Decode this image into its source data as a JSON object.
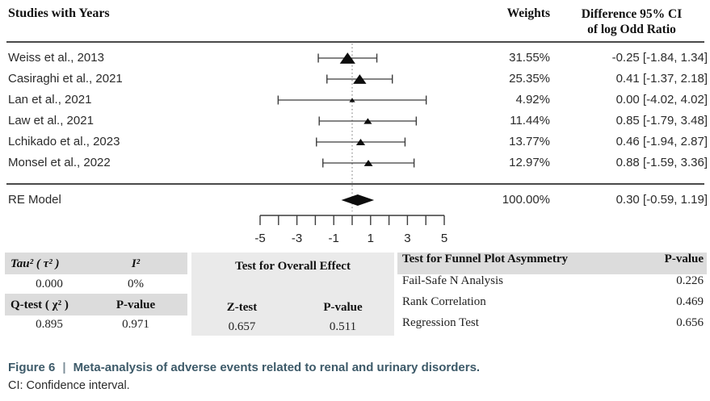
{
  "table_header": {
    "studies": "Studies with Years",
    "weights": "Weights",
    "difference_line1": "Difference 95% CI",
    "difference_line2": "of log Odd Ratio"
  },
  "chart_data": {
    "type": "forest",
    "effect_measure": "log Odd Ratio",
    "x_axis": {
      "min": -5,
      "max": 5,
      "tick_interval": 1,
      "tick_labels": [
        -5,
        -3,
        -1,
        1,
        3,
        5
      ],
      "reference_line": 0
    },
    "studies": [
      {
        "label": "Weiss et al., 2013",
        "weight_pct": 31.55,
        "weight_text": "31.55%",
        "estimate": -0.25,
        "ci_lower": -1.84,
        "ci_upper": 1.34,
        "ci_text": "-0.25 [-1.84, 1.34]"
      },
      {
        "label": "Casiraghi et al., 2021",
        "weight_pct": 25.35,
        "weight_text": "25.35%",
        "estimate": 0.41,
        "ci_lower": -1.37,
        "ci_upper": 2.18,
        "ci_text": "0.41 [-1.37, 2.18]"
      },
      {
        "label": "Lan et al., 2021",
        "weight_pct": 4.92,
        "weight_text": "4.92%",
        "estimate": 0.0,
        "ci_lower": -4.02,
        "ci_upper": 4.02,
        "ci_text": "0.00 [-4.02, 4.02]"
      },
      {
        "label": "Law et al., 2021",
        "weight_pct": 11.44,
        "weight_text": "11.44%",
        "estimate": 0.85,
        "ci_lower": -1.79,
        "ci_upper": 3.48,
        "ci_text": "0.85 [-1.79, 3.48]"
      },
      {
        "label": "Lchikado et al., 2023",
        "weight_pct": 13.77,
        "weight_text": "13.77%",
        "estimate": 0.46,
        "ci_lower": -1.94,
        "ci_upper": 2.87,
        "ci_text": "0.46 [-1.94, 2.87]"
      },
      {
        "label": "Monsel et al., 2022",
        "weight_pct": 12.97,
        "weight_text": "12.97%",
        "estimate": 0.88,
        "ci_lower": -1.59,
        "ci_upper": 3.36,
        "ci_text": "0.88 [-1.59, 3.36]"
      }
    ],
    "summary": {
      "label": "RE Model",
      "weight_text": "100.00%",
      "estimate": 0.3,
      "ci_lower": -0.59,
      "ci_upper": 1.19,
      "ci_text": "0.30 [-0.59, 1.19]"
    }
  },
  "stats": {
    "heterogeneity": {
      "tau2_label": "Tau² ( τ² )",
      "i2_label": "I²",
      "tau2_value": "0.000",
      "i2_value": "0%",
      "qtest_label": "Q-test ( χ² )",
      "qtest_pvalue_label": "P-value",
      "qtest_value": "0.895",
      "qtest_pvalue": "0.971"
    },
    "overall_effect": {
      "title": "Test for Overall Effect",
      "ztest_label": "Z-test",
      "pvalue_label": "P-value",
      "ztest_value": "0.657",
      "pvalue": "0.511"
    },
    "funnel_asymmetry": {
      "title": "Test for Funnel Plot Asymmetry",
      "pvalue_label": "P-value",
      "rows": [
        {
          "label": "Fail-Safe N Analysis",
          "pvalue": "0.226"
        },
        {
          "label": "Rank Correlation",
          "pvalue": "0.469"
        },
        {
          "label": "Regression Test",
          "pvalue": "0.656"
        }
      ]
    }
  },
  "caption": {
    "figure_label": "Figure 6",
    "separator": "|",
    "title": "Meta-analysis of adverse events related to renal and urinary disorders.",
    "note": "CI: Confidence interval."
  },
  "colors": {
    "caption_accent": "#3d5a69",
    "header_band_gray": "#dcdcdc",
    "block_gray": "#eaeaea",
    "marker_black": "#0d0d0d",
    "line_gray": "#3c3c3c"
  }
}
